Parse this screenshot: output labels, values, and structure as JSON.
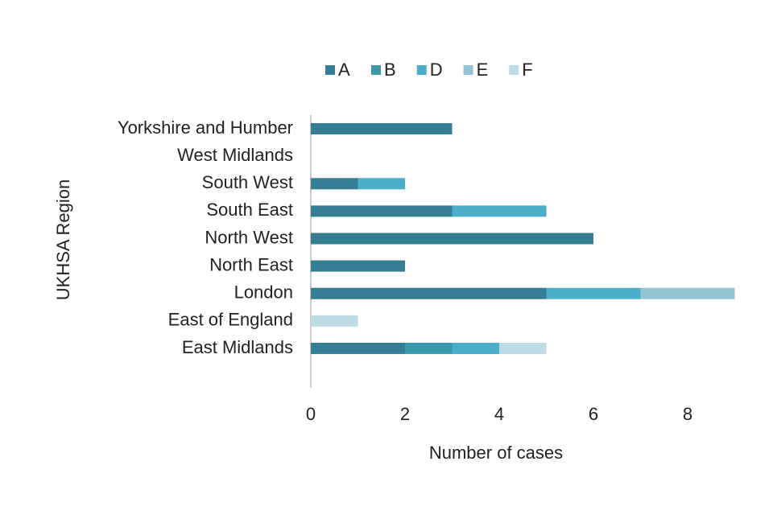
{
  "chart_data": {
    "type": "stacked-barh",
    "categories": [
      "Yorkshire and Humber",
      "West Midlands",
      "South West",
      "South East",
      "North West",
      "North East",
      "London",
      "East of England",
      "East Midlands"
    ],
    "series": [
      {
        "name": "A",
        "color": "#347d93",
        "values": [
          3,
          0,
          1,
          3,
          6,
          2,
          5,
          0,
          2
        ]
      },
      {
        "name": "B",
        "color": "#3a98ad",
        "values": [
          0,
          0,
          0,
          0,
          0,
          0,
          0,
          0,
          1
        ]
      },
      {
        "name": "D",
        "color": "#4bafc9",
        "values": [
          0,
          0,
          1,
          2,
          0,
          0,
          2,
          0,
          1
        ]
      },
      {
        "name": "E",
        "color": "#93c4d6",
        "values": [
          0,
          0,
          0,
          0,
          0,
          0,
          2,
          0,
          0
        ]
      },
      {
        "name": "F",
        "color": "#bcdbe5",
        "values": [
          0,
          0,
          0,
          0,
          0,
          0,
          0,
          1,
          1
        ]
      }
    ],
    "xlabel": "Number of cases",
    "ylabel": "UKHSA Region",
    "xlim": [
      0,
      10
    ],
    "xticks": [
      0,
      2,
      4,
      6,
      8
    ],
    "legend": "top",
    "grid": false
  }
}
